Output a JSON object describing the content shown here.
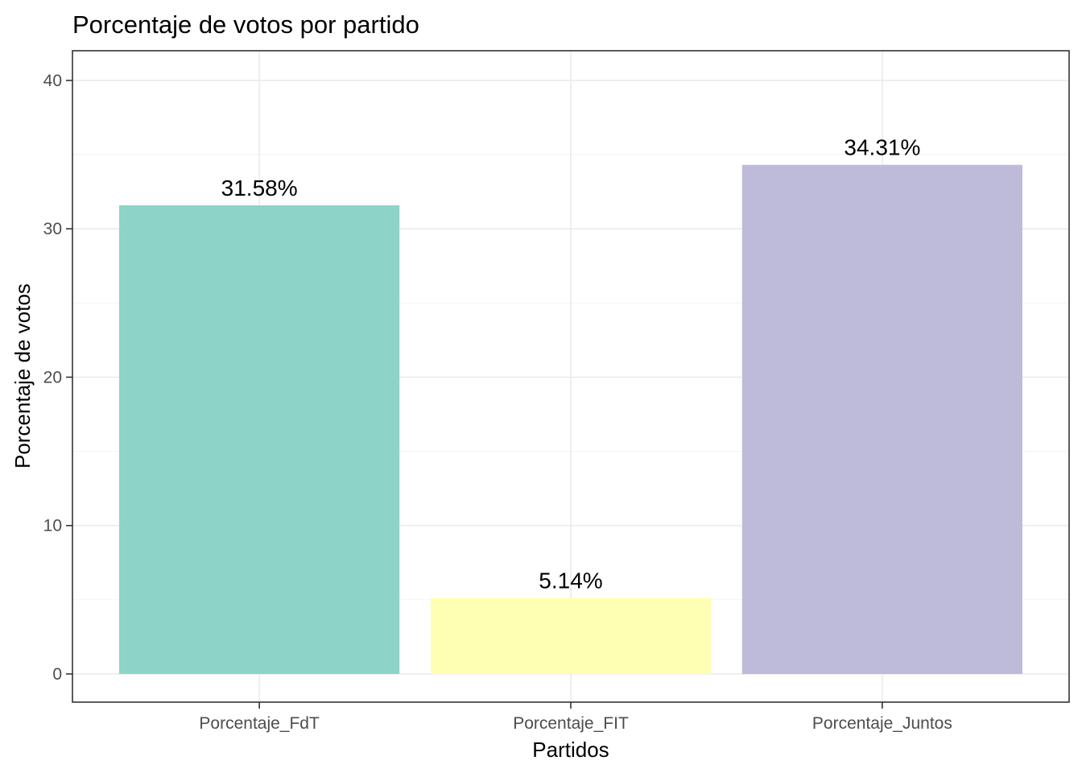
{
  "chart_data": {
    "type": "bar",
    "title": "Porcentaje de votos por partido",
    "xlabel": "Partidos",
    "ylabel": "Porcentaje de votos",
    "categories": [
      "Porcentaje_FdT",
      "Porcentaje_FIT",
      "Porcentaje_Juntos"
    ],
    "values": [
      31.58,
      5.14,
      34.31
    ],
    "value_labels": [
      "31.58%",
      "5.14%",
      "34.31%"
    ],
    "colors": [
      "#8DD3C7",
      "#FFFFB3",
      "#BEBADA"
    ],
    "ylim": [
      -1.9,
      42
    ],
    "yticks": [
      0,
      10,
      20,
      30,
      40
    ],
    "grid": true,
    "legend": "none"
  }
}
